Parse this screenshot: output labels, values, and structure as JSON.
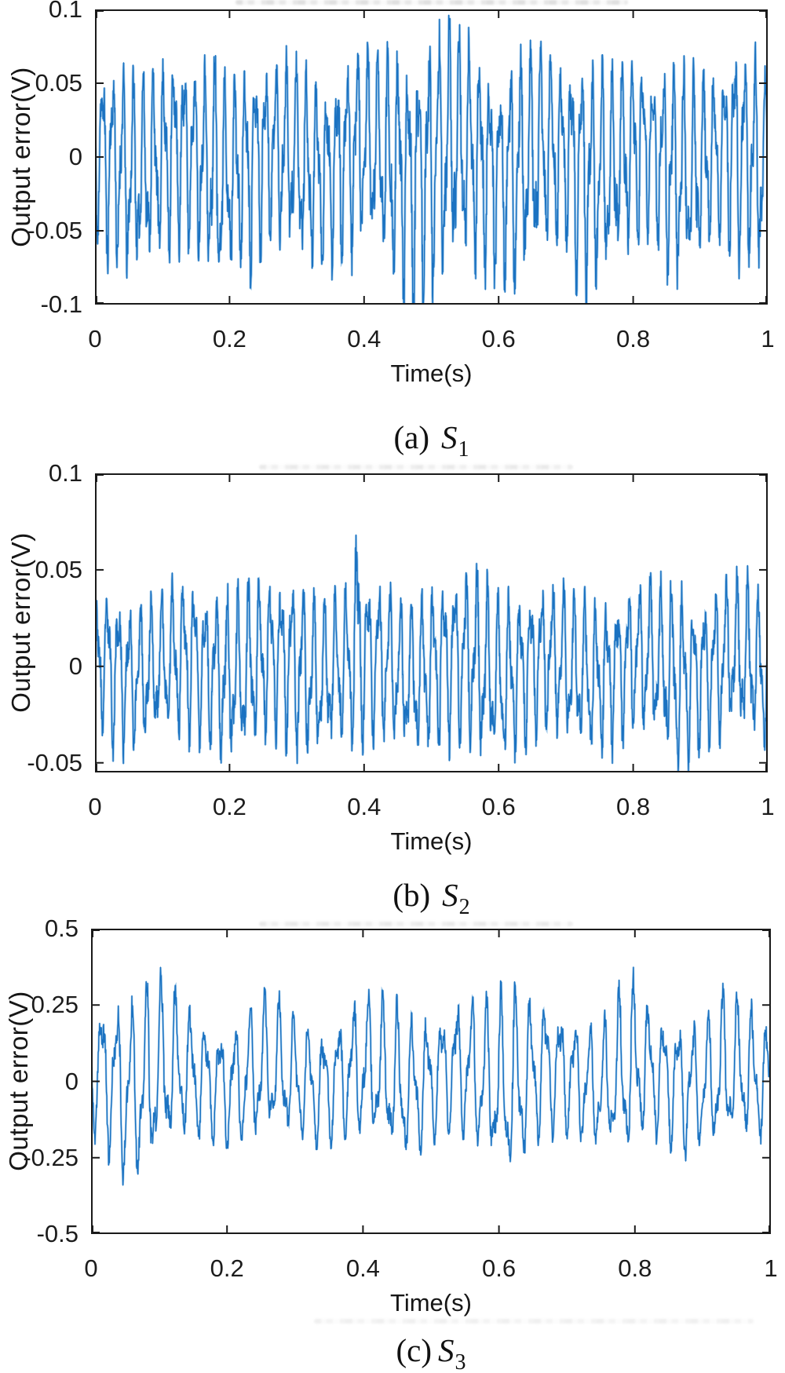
{
  "page": {
    "background": "#ffffff"
  },
  "chart_data": [
    {
      "type": "line",
      "caption": {
        "prefix": "(a)",
        "symbol": "S",
        "subscript": "1",
        "full": "(a) S1"
      },
      "xlabel": "Time(s)",
      "ylabel": "Output error(V)",
      "xlim": [
        0,
        1
      ],
      "ylim": [
        -0.1,
        0.1
      ],
      "xticks": [
        0,
        0.2,
        0.4,
        0.6,
        0.8,
        1
      ],
      "xtick_labels": [
        "0",
        "0.2",
        "0.4",
        "0.6",
        "0.8",
        "1"
      ],
      "yticks": [
        0.1,
        0.05,
        0,
        -0.05,
        -0.1
      ],
      "ytick_labels": [
        "0.1",
        "0.05",
        "0",
        "-0.05",
        "-0.1"
      ],
      "grid": false,
      "legend": null,
      "line_color": "#1b72c1",
      "line_halo_color": "#85bbe4",
      "axis_color": "#1a1a1a",
      "signal": {
        "description": "dense oscillatory output error, approx 66 Hz carrier, amplitude 0.05-0.1 V, max ~0.096 V near t=0.5 s, dips to -0.1 V near t=0.23 and 0.35 s",
        "carrier_hz": 66,
        "samples": 2300,
        "seed": 11,
        "noise": 0.22,
        "neg_scale": 1.18,
        "gain": 0.88,
        "envelope": [
          [
            0,
            0.06
          ],
          [
            0.02,
            0.068
          ],
          [
            0.05,
            0.072
          ],
          [
            0.08,
            0.065
          ],
          [
            0.12,
            0.07
          ],
          [
            0.15,
            0.062
          ],
          [
            0.18,
            0.086
          ],
          [
            0.2,
            0.068
          ],
          [
            0.23,
            0.072
          ],
          [
            0.27,
            0.064
          ],
          [
            0.3,
            0.07
          ],
          [
            0.34,
            0.062
          ],
          [
            0.38,
            0.072
          ],
          [
            0.42,
            0.075
          ],
          [
            0.46,
            0.085
          ],
          [
            0.5,
            0.096
          ],
          [
            0.53,
            0.088
          ],
          [
            0.56,
            0.078
          ],
          [
            0.6,
            0.068
          ],
          [
            0.63,
            0.084
          ],
          [
            0.67,
            0.075
          ],
          [
            0.7,
            0.065
          ],
          [
            0.73,
            0.082
          ],
          [
            0.77,
            0.07
          ],
          [
            0.8,
            0.066
          ],
          [
            0.83,
            0.06
          ],
          [
            0.86,
            0.078
          ],
          [
            0.9,
            0.068
          ],
          [
            0.93,
            0.062
          ],
          [
            0.96,
            0.082
          ],
          [
            1,
            0.07
          ]
        ]
      }
    },
    {
      "type": "line",
      "caption": {
        "prefix": "(b)",
        "symbol": "S",
        "subscript": "2",
        "full": "(b) S2"
      },
      "xlabel": "Time(s)",
      "ylabel": "Output error(V)",
      "xlim": [
        0,
        1
      ],
      "ylim": [
        -0.055,
        0.1
      ],
      "xticks": [
        0,
        0.2,
        0.4,
        0.6,
        0.8,
        1
      ],
      "xtick_labels": [
        "0",
        "0.2",
        "0.4",
        "0.6",
        "0.8",
        "1"
      ],
      "yticks": [
        0.1,
        0.05,
        0,
        -0.05
      ],
      "ytick_labels": [
        "0.1",
        "0.05",
        "0",
        "-0.05"
      ],
      "grid": false,
      "legend": null,
      "line_color": "#1b72c1",
      "line_halo_color": "#85bbe4",
      "axis_color": "#1a1a1a",
      "signal": {
        "description": "oscillatory output error, approx 62 Hz carrier, amplitude ~±0.05 V, isolated spike to ~0.07 V at t=0.39 s, dip below -0.05 V near t=0.87 s",
        "carrier_hz": 62,
        "samples": 2300,
        "seed": 23,
        "noise": 0.2,
        "neg_scale": 1.02,
        "gain": 0.88,
        "envelope": [
          [
            0,
            0.038
          ],
          [
            0.03,
            0.046
          ],
          [
            0.06,
            0.04
          ],
          [
            0.1,
            0.043
          ],
          [
            0.13,
            0.048
          ],
          [
            0.17,
            0.045
          ],
          [
            0.2,
            0.05
          ],
          [
            0.25,
            0.046
          ],
          [
            0.3,
            0.049
          ],
          [
            0.35,
            0.044
          ],
          [
            0.383,
            0.048
          ],
          [
            0.39,
            0.085
          ],
          [
            0.397,
            0.048
          ],
          [
            0.42,
            0.046
          ],
          [
            0.46,
            0.044
          ],
          [
            0.5,
            0.048
          ],
          [
            0.54,
            0.05
          ],
          [
            0.565,
            0.056
          ],
          [
            0.6,
            0.048
          ],
          [
            0.64,
            0.046
          ],
          [
            0.68,
            0.044
          ],
          [
            0.72,
            0.047
          ],
          [
            0.76,
            0.044
          ],
          [
            0.8,
            0.042
          ],
          [
            0.84,
            0.046
          ],
          [
            0.865,
            0.056
          ],
          [
            0.9,
            0.044
          ],
          [
            0.94,
            0.047
          ],
          [
            0.97,
            0.05
          ],
          [
            1,
            0.042
          ]
        ]
      }
    },
    {
      "type": "line",
      "caption": {
        "prefix": "(c)",
        "symbol": "S",
        "subscript": "3",
        "full": "(c) S3"
      },
      "xlabel": "Time(s)",
      "ylabel": "Output error(V)",
      "xlim": [
        0,
        1
      ],
      "ylim": [
        -0.5,
        0.5
      ],
      "xticks": [
        0,
        0.2,
        0.4,
        0.6,
        0.8,
        1
      ],
      "xtick_labels": [
        "0",
        "0.2",
        "0.4",
        "0.6",
        "0.8",
        "1"
      ],
      "yticks": [
        0.5,
        0.25,
        0,
        -0.25,
        -0.5
      ],
      "ytick_labels": [
        "0.5",
        "0.25",
        "0",
        "-0.25",
        "-0.5"
      ],
      "grid": false,
      "legend": null,
      "line_color": "#1b72c1",
      "line_halo_color": "#85bbe4",
      "axis_color": "#1a1a1a",
      "signal": {
        "description": "oscillatory output error, approx 46 Hz carrier, amplitude ~±0.3 V, peaks ~0.45 V near t=0.05-0.1 s and spikes ~0.46 V at t=0.62 s and t=0.79 s, dips to ~-0.38 V",
        "carrier_hz": 46,
        "samples": 1900,
        "seed": 37,
        "noise": 0.15,
        "neg_scale": 0.84,
        "gain": 0.78,
        "envelope": [
          [
            0,
            0.3
          ],
          [
            0.03,
            0.38
          ],
          [
            0.05,
            0.45
          ],
          [
            0.07,
            0.44
          ],
          [
            0.09,
            0.45
          ],
          [
            0.11,
            0.4
          ],
          [
            0.14,
            0.3
          ],
          [
            0.18,
            0.28
          ],
          [
            0.22,
            0.31
          ],
          [
            0.26,
            0.32
          ],
          [
            0.3,
            0.28
          ],
          [
            0.34,
            0.3
          ],
          [
            0.38,
            0.31
          ],
          [
            0.42,
            0.34
          ],
          [
            0.46,
            0.35
          ],
          [
            0.5,
            0.3
          ],
          [
            0.54,
            0.32
          ],
          [
            0.58,
            0.36
          ],
          [
            0.61,
            0.43
          ],
          [
            0.625,
            0.46
          ],
          [
            0.64,
            0.36
          ],
          [
            0.68,
            0.3
          ],
          [
            0.72,
            0.28
          ],
          [
            0.76,
            0.31
          ],
          [
            0.79,
            0.45
          ],
          [
            0.81,
            0.32
          ],
          [
            0.84,
            0.3
          ],
          [
            0.87,
            0.33
          ],
          [
            0.9,
            0.3
          ],
          [
            0.93,
            0.34
          ],
          [
            0.96,
            0.31
          ],
          [
            1,
            0.28
          ]
        ]
      }
    }
  ]
}
